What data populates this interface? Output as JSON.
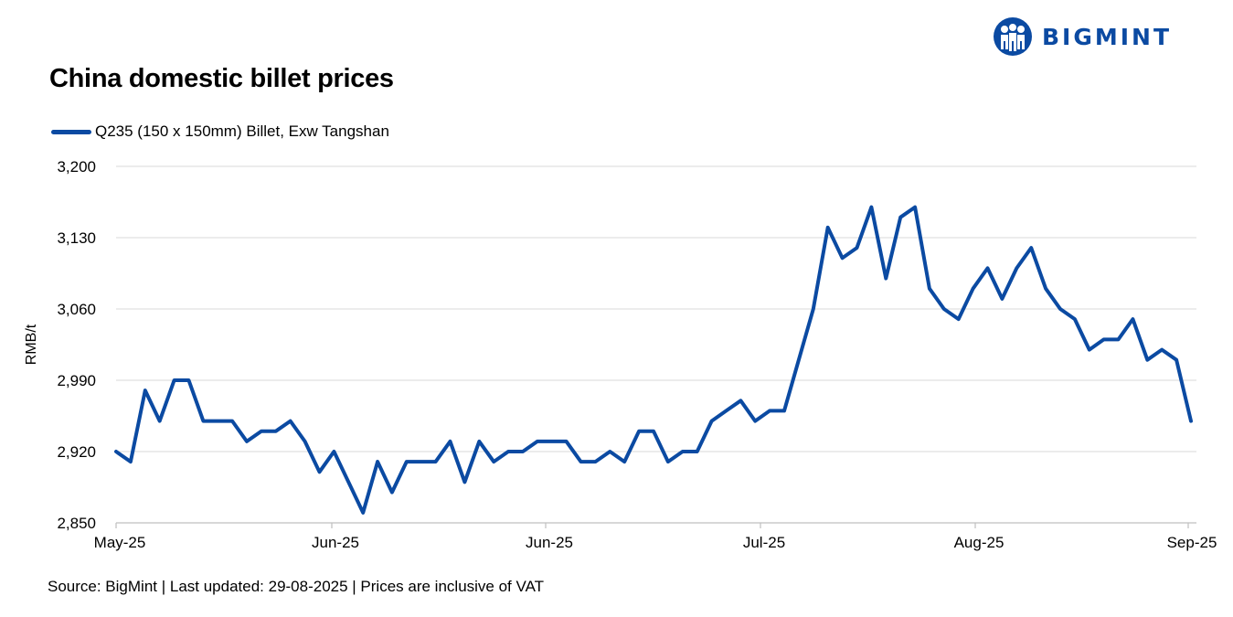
{
  "header": {
    "title": "China domestic billet prices",
    "brand": "BIGMINT"
  },
  "footer": {
    "source": "Source: BigMint | Last updated: 29-08-2025 | Prices are inclusive of VAT"
  },
  "colors": {
    "series": "#0b4aa2",
    "grid": "#d9d9d9",
    "axis": "#bfbfbf"
  },
  "icons": {
    "logo": "bigmint-logo-icon"
  },
  "chart_data": {
    "type": "line",
    "title": "China domestic billet prices",
    "ylabel": "RMB/t",
    "xlabel": "",
    "ylim": [
      2850,
      3200
    ],
    "yticks": [
      2850,
      2920,
      2990,
      3060,
      3130,
      3200
    ],
    "ytick_labels": [
      "2,850",
      "2,920",
      "2,990",
      "3,060",
      "3,130",
      "3,200"
    ],
    "xticks": [
      "May-25",
      "Jun-25",
      "Jun-25",
      "Jul-25",
      "Aug-25",
      "Sep-25"
    ],
    "grid": true,
    "legend_position": "top-left",
    "series": [
      {
        "name": "Q235 (150 x 150mm) Billet, Exw Tangshan",
        "values": [
          2920,
          2910,
          2980,
          2950,
          2990,
          2990,
          2950,
          2950,
          2950,
          2930,
          2940,
          2940,
          2950,
          2930,
          2900,
          2920,
          2890,
          2860,
          2910,
          2880,
          2910,
          2910,
          2910,
          2930,
          2890,
          2930,
          2910,
          2920,
          2920,
          2930,
          2930,
          2930,
          2910,
          2910,
          2920,
          2910,
          2940,
          2940,
          2910,
          2920,
          2920,
          2950,
          2960,
          2970,
          2950,
          2960,
          2960,
          3010,
          3060,
          3140,
          3110,
          3120,
          3160,
          3090,
          3150,
          3160,
          3080,
          3060,
          3050,
          3080,
          3100,
          3070,
          3100,
          3120,
          3080,
          3060,
          3050,
          3020,
          3030,
          3030,
          3050,
          3010,
          3020,
          3010,
          2950
        ]
      }
    ]
  }
}
